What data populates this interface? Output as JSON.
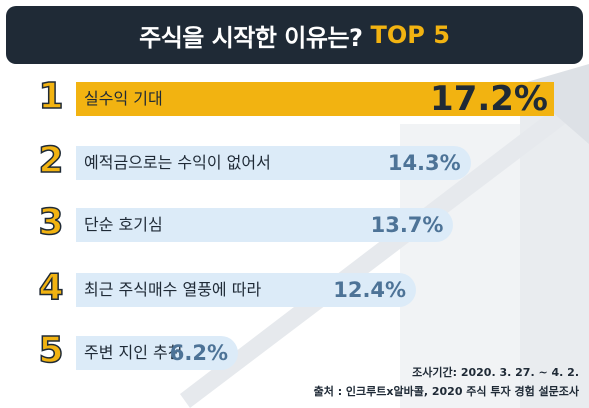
{
  "title": {
    "main": "주식을 시작한 이유는?",
    "accent": "TOP 5"
  },
  "chart_data": {
    "type": "bar",
    "orientation": "horizontal",
    "ranks": [
      "1",
      "2",
      "3",
      "4",
      "5"
    ],
    "categories": [
      "실수익 기대",
      "예적금으로는 수익이 없어서",
      "단순 호기심",
      "최근 주식매수 열풍에 따라",
      "주변 지인 추천"
    ],
    "values": [
      17.2,
      14.3,
      13.7,
      12.4,
      6.2
    ],
    "value_labels": [
      "17.2%",
      "14.3%",
      "13.7%",
      "12.4%",
      "6.2%"
    ],
    "unit": "%"
  },
  "footnotes": {
    "period": "조사기간: 2020. 3. 27. ~ 4. 2.",
    "source": "출처 : 인크루트x알바콜, 2020 주식 투자 경험 설문조사"
  },
  "colors": {
    "banner": "#1f2a36",
    "accent": "#f2b311",
    "bar_top": "#f2b311",
    "bar_other": "#dcebf8",
    "value_text": "#4d7397",
    "deco": "#eef0f3"
  }
}
